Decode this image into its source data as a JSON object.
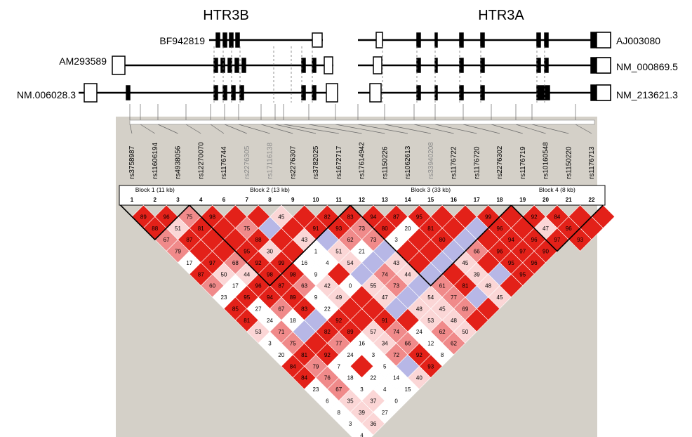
{
  "genes": [
    {
      "name": "HTR3B"
    },
    {
      "name": "HTR3A"
    }
  ],
  "transcripts": [
    {
      "name": "BF942819",
      "side": "left"
    },
    {
      "name": "AM293589",
      "side": "left"
    },
    {
      "name": "NM.006028.3",
      "side": "left"
    },
    {
      "name": "AJ003080",
      "side": "right"
    },
    {
      "name": "NM_000869.5",
      "side": "right"
    },
    {
      "name": "NM_213621.3",
      "side": "right"
    }
  ],
  "snps": [
    {
      "id": "rs3758987",
      "grey": false
    },
    {
      "id": "rs11606194",
      "grey": false
    },
    {
      "id": "rs4938056",
      "grey": false
    },
    {
      "id": "rs12270070",
      "grey": false
    },
    {
      "id": "rs1176744",
      "grey": false
    },
    {
      "id": "rs2276305",
      "grey": true
    },
    {
      "id": "rs17116138",
      "grey": true
    },
    {
      "id": "rs2276307",
      "grey": false
    },
    {
      "id": "rs3782025",
      "grey": false
    },
    {
      "id": "rs1672717",
      "grey": false
    },
    {
      "id": "rs17614942",
      "grey": false
    },
    {
      "id": "rs1150226",
      "grey": false
    },
    {
      "id": "rs1062613",
      "grey": false
    },
    {
      "id": "rs33940208",
      "grey": true
    },
    {
      "id": "rs1176722",
      "grey": false
    },
    {
      "id": "rs1176720",
      "grey": false
    },
    {
      "id": "rs2276302",
      "grey": false
    },
    {
      "id": "rs1176719",
      "grey": false
    },
    {
      "id": "rs10160548",
      "grey": false
    },
    {
      "id": "rs1150220",
      "grey": false
    },
    {
      "id": "rs1176713",
      "grey": false
    }
  ],
  "blocks": [
    {
      "label": "Block 1 (11 kb)"
    },
    {
      "label": "Block 2 (13 kb)"
    },
    {
      "label": "Block 3 (33 kb)"
    },
    {
      "label": "Block 4 (8 kb)"
    }
  ],
  "column_numbers": [
    "1",
    "2",
    "3",
    "4",
    "6",
    "7",
    "8",
    "9",
    "10",
    "11",
    "12",
    "13",
    "14",
    "15",
    "16",
    "17",
    "18",
    "19",
    "20",
    "21",
    "22"
  ],
  "colors": {
    "strong": "#e32119",
    "medium": "#f08a8a",
    "light": "#fbd6d6",
    "white": "#ffffff",
    "blue": "#b7b7e6",
    "background": "#d4d0c8"
  },
  "ld_rows": [
    [
      "89",
      "96",
      "75",
      "98",
      "",
      "",
      "45",
      "",
      "82",
      "83",
      "94",
      "87",
      "95",
      "",
      "",
      "99",
      "",
      "92",
      "84",
      "",
      ""
    ],
    [
      "88",
      "51",
      "81",
      "",
      "75",
      "",
      "",
      "91",
      "93",
      "73",
      "80",
      "20",
      "81",
      "",
      "",
      "96",
      "",
      "47",
      "96",
      ""
    ],
    [
      "67",
      "87",
      "",
      "",
      "88",
      "",
      "43",
      "",
      "62",
      "73",
      "3",
      "",
      "80",
      "",
      "",
      "94",
      "96",
      "97",
      "93"
    ],
    [
      "79",
      "",
      "",
      "95",
      "30",
      "",
      "1",
      "51",
      "21",
      "",
      "",
      "",
      "",
      "66",
      "96",
      "97",
      "90"
    ],
    [
      "17",
      "97",
      "68",
      "92",
      "99",
      "16",
      "4",
      "54",
      "",
      "43",
      "",
      "",
      "45",
      "",
      "95",
      "96"
    ],
    [
      "87",
      "50",
      "44",
      "98",
      "98",
      "9",
      "",
      "",
      "74",
      "44",
      "",
      "",
      "39",
      "",
      "95"
    ],
    [
      "60",
      "17",
      "96",
      "87",
      "63",
      "42",
      "0",
      "55",
      "73",
      "",
      "61",
      "81",
      "48",
      ""
    ],
    [
      "23",
      "95",
      "94",
      "89",
      "9",
      "49",
      "",
      "47",
      "",
      "54",
      "77",
      "",
      "45"
    ],
    [
      "85",
      "27",
      "67",
      "83",
      "22",
      "",
      "",
      "",
      "48",
      "45",
      "69",
      ""
    ],
    [
      "81",
      "24",
      "18",
      "",
      "92",
      "",
      "91",
      "",
      "53",
      "48",
      ""
    ],
    [
      "53",
      "71",
      "",
      "82",
      "89",
      "57",
      "74",
      "24",
      "62",
      "50"
    ],
    [
      "3",
      "75",
      "",
      "77",
      "16",
      "34",
      "66",
      "12",
      "62"
    ],
    [
      "20",
      "81",
      "92",
      "24",
      "3",
      "72",
      "92",
      "8"
    ],
    [
      "84",
      "79",
      "7",
      "",
      "5",
      "",
      "93"
    ],
    [
      "84",
      "76",
      "18",
      "22",
      "14",
      "40"
    ],
    [
      "23",
      "67",
      "3",
      "4",
      "15"
    ],
    [
      "6",
      "35",
      "37",
      "0"
    ],
    [
      "8",
      "39",
      "27"
    ],
    [
      "3",
      "36"
    ],
    [
      "4"
    ]
  ]
}
